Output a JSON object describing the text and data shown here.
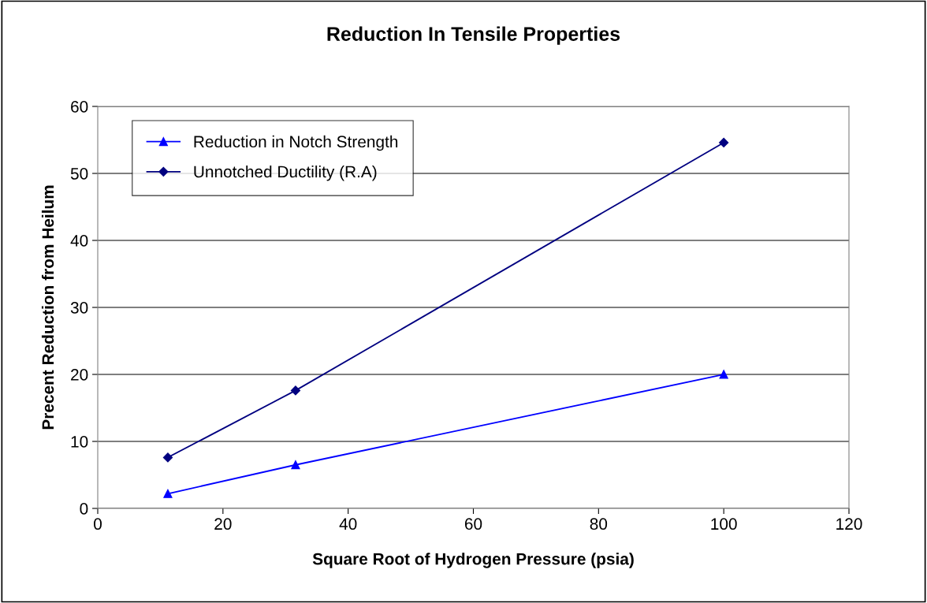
{
  "chart_data": {
    "type": "line",
    "title": "Reduction In Tensile Properties",
    "xlabel": "Square Root of Hydrogen Pressure (psia)",
    "ylabel": "Precent Reduction from Heilum",
    "series": [
      {
        "name": "Reduction in Notch Strength",
        "color": "#0000ff",
        "marker": "triangle",
        "x": [
          11.2,
          31.6,
          100
        ],
        "values": [
          2.2,
          6.5,
          20.0
        ]
      },
      {
        "name": "Unnotched Ductility (R.A)",
        "color": "#000080",
        "marker": "diamond",
        "x": [
          11.2,
          31.6,
          100
        ],
        "values": [
          7.6,
          17.6,
          54.6
        ]
      }
    ],
    "xlim": [
      0,
      120
    ],
    "xticks": [
      0,
      20,
      40,
      60,
      80,
      100,
      120
    ],
    "ylim": [
      0,
      60
    ],
    "yticks": [
      0,
      10,
      20,
      30,
      40,
      50,
      60
    ],
    "grid": "y",
    "legend": "top left",
    "line_style": "solid"
  }
}
